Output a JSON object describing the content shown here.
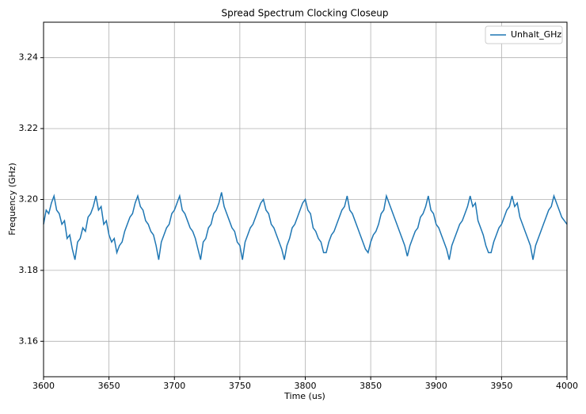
{
  "chart_data": {
    "type": "line",
    "title": "Spread Spectrum Clocking Closeup",
    "xlabel": "Time (us)",
    "ylabel": "Frequency (GHz)",
    "x": [
      3600,
      3602,
      3604,
      3606,
      3608,
      3610,
      3612,
      3614,
      3616,
      3618,
      3620,
      3622,
      3624,
      3626,
      3628,
      3630,
      3632,
      3634,
      3636,
      3638,
      3640,
      3642,
      3644,
      3646,
      3648,
      3650,
      3652,
      3654,
      3656,
      3658,
      3660,
      3662,
      3664,
      3666,
      3668,
      3670,
      3672,
      3674,
      3676,
      3678,
      3680,
      3682,
      3684,
      3686,
      3688,
      3690,
      3692,
      3694,
      3696,
      3698,
      3700,
      3702,
      3704,
      3706,
      3708,
      3710,
      3712,
      3714,
      3716,
      3718,
      3720,
      3722,
      3724,
      3726,
      3728,
      3730,
      3732,
      3734,
      3736,
      3738,
      3740,
      3742,
      3744,
      3746,
      3748,
      3750,
      3752,
      3754,
      3756,
      3758,
      3760,
      3762,
      3764,
      3766,
      3768,
      3770,
      3772,
      3774,
      3776,
      3778,
      3780,
      3782,
      3784,
      3786,
      3788,
      3790,
      3792,
      3794,
      3796,
      3798,
      3800,
      3802,
      3804,
      3806,
      3808,
      3810,
      3812,
      3814,
      3816,
      3818,
      3820,
      3822,
      3824,
      3826,
      3828,
      3830,
      3832,
      3834,
      3836,
      3838,
      3840,
      3842,
      3844,
      3846,
      3848,
      3850,
      3852,
      3854,
      3856,
      3858,
      3860,
      3862,
      3864,
      3866,
      3868,
      3870,
      3872,
      3874,
      3876,
      3878,
      3880,
      3882,
      3884,
      3886,
      3888,
      3890,
      3892,
      3894,
      3896,
      3898,
      3900,
      3902,
      3904,
      3906,
      3908,
      3910,
      3912,
      3914,
      3916,
      3918,
      3920,
      3922,
      3924,
      3926,
      3928,
      3930,
      3932,
      3934,
      3936,
      3938,
      3940,
      3942,
      3944,
      3946,
      3948,
      3950,
      3952,
      3954,
      3956,
      3958,
      3960,
      3962,
      3964,
      3966,
      3968,
      3970,
      3972,
      3974,
      3976,
      3978,
      3980,
      3982,
      3984,
      3986,
      3988,
      3990,
      3992,
      3994,
      3996,
      3998,
      4000
    ],
    "series": [
      {
        "name": "Unhalt_GHz",
        "color": "#1f77b4",
        "values": [
          3.193,
          3.197,
          3.196,
          3.199,
          3.201,
          3.197,
          3.196,
          3.193,
          3.194,
          3.189,
          3.19,
          3.186,
          3.183,
          3.188,
          3.189,
          3.192,
          3.191,
          3.195,
          3.196,
          3.198,
          3.201,
          3.197,
          3.198,
          3.193,
          3.194,
          3.19,
          3.188,
          3.189,
          3.185,
          3.187,
          3.188,
          3.191,
          3.193,
          3.195,
          3.196,
          3.199,
          3.201,
          3.198,
          3.197,
          3.194,
          3.193,
          3.191,
          3.19,
          3.187,
          3.183,
          3.188,
          3.19,
          3.192,
          3.193,
          3.196,
          3.197,
          3.199,
          3.201,
          3.197,
          3.196,
          3.194,
          3.192,
          3.191,
          3.189,
          3.186,
          3.183,
          3.188,
          3.189,
          3.192,
          3.193,
          3.196,
          3.197,
          3.199,
          3.202,
          3.198,
          3.196,
          3.194,
          3.192,
          3.191,
          3.188,
          3.187,
          3.183,
          3.188,
          3.19,
          3.192,
          3.193,
          3.195,
          3.197,
          3.199,
          3.2,
          3.197,
          3.196,
          3.193,
          3.192,
          3.19,
          3.188,
          3.186,
          3.183,
          3.187,
          3.189,
          3.192,
          3.193,
          3.195,
          3.197,
          3.199,
          3.2,
          3.197,
          3.196,
          3.192,
          3.191,
          3.189,
          3.188,
          3.185,
          3.185,
          3.188,
          3.19,
          3.191,
          3.193,
          3.195,
          3.197,
          3.198,
          3.201,
          3.197,
          3.196,
          3.194,
          3.192,
          3.19,
          3.188,
          3.186,
          3.185,
          3.188,
          3.19,
          3.191,
          3.193,
          3.196,
          3.197,
          3.201,
          3.199,
          3.197,
          3.195,
          3.193,
          3.191,
          3.189,
          3.187,
          3.184,
          3.187,
          3.189,
          3.191,
          3.192,
          3.195,
          3.196,
          3.198,
          3.201,
          3.197,
          3.196,
          3.193,
          3.192,
          3.19,
          3.188,
          3.186,
          3.183,
          3.187,
          3.189,
          3.191,
          3.193,
          3.194,
          3.196,
          3.198,
          3.201,
          3.198,
          3.199,
          3.194,
          3.192,
          3.19,
          3.187,
          3.185,
          3.185,
          3.188,
          3.19,
          3.192,
          3.193,
          3.195,
          3.197,
          3.198,
          3.201,
          3.198,
          3.199,
          3.195,
          3.193,
          3.191,
          3.189,
          3.187,
          3.183,
          3.187,
          3.189,
          3.191,
          3.193,
          3.195,
          3.197,
          3.198,
          3.201,
          3.199,
          3.197,
          3.195,
          3.194,
          3.193
        ]
      }
    ],
    "xlim": [
      3600,
      4000
    ],
    "xticks": [
      3600,
      3650,
      3700,
      3750,
      3800,
      3850,
      3900,
      3950,
      4000
    ],
    "ylim": [
      3.15,
      3.25
    ],
    "yticks": [
      3.16,
      3.18,
      {
        "value": 3.2,
        "label": "3.20"
      },
      3.22,
      3.24
    ],
    "grid": true,
    "legend": "upper-right"
  }
}
